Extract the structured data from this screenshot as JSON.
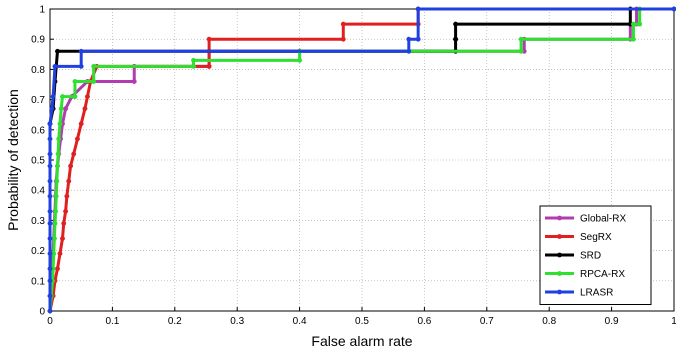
{
  "chart_data": {
    "type": "line",
    "xlabel": "False alarm rate",
    "ylabel": "Probability of detection",
    "xlim": [
      0,
      1
    ],
    "ylim": [
      0,
      1
    ],
    "xticks": [
      "0",
      "0.1",
      "0.2",
      "0.3",
      "0.4",
      "0.5",
      "0.6",
      "0.7",
      "0.8",
      "0.9",
      "1"
    ],
    "yticks": [
      "0",
      "0.1",
      "0.2",
      "0.3",
      "0.4",
      "0.5",
      "0.6",
      "0.7",
      "0.8",
      "0.9",
      "1"
    ],
    "grid": true,
    "legend_position": "bottom-right",
    "series": [
      {
        "name": "Global-RX",
        "color": "#b03cb0",
        "marker": "circle",
        "points": [
          [
            0,
            0
          ],
          [
            0,
            0.05
          ],
          [
            0.003,
            0.1
          ],
          [
            0.004,
            0.14
          ],
          [
            0.005,
            0.19
          ],
          [
            0.006,
            0.24
          ],
          [
            0.007,
            0.29
          ],
          [
            0.008,
            0.33
          ],
          [
            0.009,
            0.38
          ],
          [
            0.01,
            0.43
          ],
          [
            0.012,
            0.48
          ],
          [
            0.014,
            0.52
          ],
          [
            0.017,
            0.57
          ],
          [
            0.02,
            0.62
          ],
          [
            0.025,
            0.67
          ],
          [
            0.035,
            0.71
          ],
          [
            0.06,
            0.76
          ],
          [
            0.135,
            0.76
          ],
          [
            0.135,
            0.81
          ],
          [
            0.255,
            0.81
          ],
          [
            0.255,
            0.86
          ],
          [
            0.76,
            0.86
          ],
          [
            0.76,
            0.9
          ],
          [
            0.93,
            0.9
          ],
          [
            0.93,
            0.95
          ],
          [
            0.94,
            0.95
          ],
          [
            0.94,
            1
          ],
          [
            1,
            1
          ]
        ]
      },
      {
        "name": "SegRX",
        "color": "#e02020",
        "marker": "circle",
        "points": [
          [
            0,
            0
          ],
          [
            0.005,
            0.05
          ],
          [
            0.008,
            0.1
          ],
          [
            0.012,
            0.14
          ],
          [
            0.016,
            0.19
          ],
          [
            0.02,
            0.24
          ],
          [
            0.022,
            0.29
          ],
          [
            0.025,
            0.33
          ],
          [
            0.027,
            0.38
          ],
          [
            0.03,
            0.43
          ],
          [
            0.033,
            0.48
          ],
          [
            0.038,
            0.52
          ],
          [
            0.044,
            0.57
          ],
          [
            0.05,
            0.62
          ],
          [
            0.056,
            0.67
          ],
          [
            0.06,
            0.71
          ],
          [
            0.065,
            0.76
          ],
          [
            0.075,
            0.81
          ],
          [
            0.255,
            0.81
          ],
          [
            0.255,
            0.9
          ],
          [
            0.47,
            0.9
          ],
          [
            0.47,
            0.95
          ],
          [
            0.59,
            0.95
          ],
          [
            0.59,
            1
          ],
          [
            1,
            1
          ]
        ]
      },
      {
        "name": "SRD",
        "color": "#000000",
        "marker": "circle",
        "points": [
          [
            0,
            0
          ],
          [
            0,
            0.62
          ],
          [
            0.005,
            0.67
          ],
          [
            0.008,
            0.76
          ],
          [
            0.01,
            0.81
          ],
          [
            0.012,
            0.86
          ],
          [
            0.4,
            0.86
          ],
          [
            0.4,
            0.86
          ],
          [
            0.65,
            0.86
          ],
          [
            0.65,
            0.9
          ],
          [
            0.65,
            0.9
          ],
          [
            0.65,
            0.95
          ],
          [
            0.93,
            0.95
          ],
          [
            0.93,
            1
          ],
          [
            1,
            1
          ]
        ]
      },
      {
        "name": "RPCA-RX",
        "color": "#30e030",
        "marker": "circle",
        "points": [
          [
            0,
            0
          ],
          [
            0.002,
            0.05
          ],
          [
            0.004,
            0.1
          ],
          [
            0.005,
            0.14
          ],
          [
            0.006,
            0.19
          ],
          [
            0.007,
            0.24
          ],
          [
            0.008,
            0.29
          ],
          [
            0.009,
            0.33
          ],
          [
            0.01,
            0.38
          ],
          [
            0.011,
            0.43
          ],
          [
            0.012,
            0.48
          ],
          [
            0.013,
            0.52
          ],
          [
            0.014,
            0.57
          ],
          [
            0.016,
            0.62
          ],
          [
            0.018,
            0.67
          ],
          [
            0.02,
            0.71
          ],
          [
            0.04,
            0.71
          ],
          [
            0.04,
            0.76
          ],
          [
            0.07,
            0.76
          ],
          [
            0.07,
            0.81
          ],
          [
            0.23,
            0.81
          ],
          [
            0.23,
            0.83
          ],
          [
            0.4,
            0.83
          ],
          [
            0.4,
            0.86
          ],
          [
            0.755,
            0.86
          ],
          [
            0.755,
            0.9
          ],
          [
            0.935,
            0.9
          ],
          [
            0.935,
            0.95
          ],
          [
            0.945,
            0.95
          ],
          [
            0.945,
            1
          ],
          [
            1,
            1
          ]
        ]
      },
      {
        "name": "LRASR",
        "color": "#2040e0",
        "marker": "circle",
        "points": [
          [
            0,
            0
          ],
          [
            0,
            0.05
          ],
          [
            0,
            0.1
          ],
          [
            0,
            0.14
          ],
          [
            0,
            0.19
          ],
          [
            0,
            0.24
          ],
          [
            0,
            0.29
          ],
          [
            0,
            0.33
          ],
          [
            0,
            0.38
          ],
          [
            0,
            0.43
          ],
          [
            0,
            0.48
          ],
          [
            0,
            0.52
          ],
          [
            0,
            0.57
          ],
          [
            0,
            0.62
          ],
          [
            0.003,
            0.67
          ],
          [
            0.005,
            0.71
          ],
          [
            0.008,
            0.81
          ],
          [
            0.05,
            0.81
          ],
          [
            0.05,
            0.86
          ],
          [
            0.575,
            0.86
          ],
          [
            0.575,
            0.9
          ],
          [
            0.59,
            0.9
          ],
          [
            0.59,
            1
          ],
          [
            1,
            1
          ]
        ]
      }
    ]
  }
}
